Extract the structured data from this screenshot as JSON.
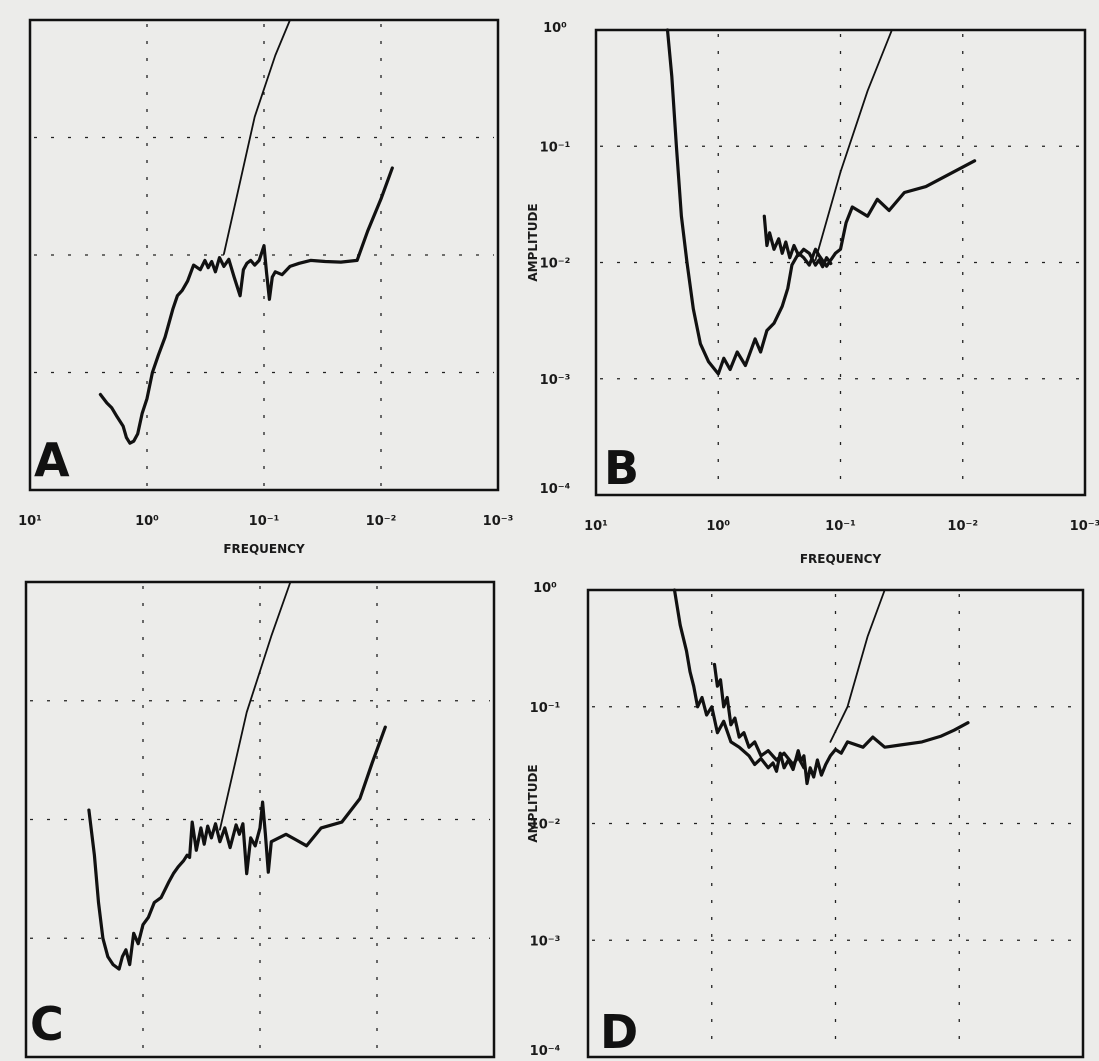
{
  "chart_data": [
    {
      "panel": "A",
      "type": "line",
      "xscale": "log",
      "yscale": "log",
      "xreversed": true,
      "xlim": [
        10,
        0.001
      ],
      "ylim": [
        0.0001,
        1
      ],
      "xticks": [
        "10¹",
        "10⁰",
        "10⁻¹",
        "10⁻²",
        "10⁻³"
      ],
      "yticks": [],
      "xlabel": "FREQUENCY",
      "ylabel": "",
      "grid": true,
      "series": [
        {
          "x": [
            0.22,
            0.12,
            0.08,
            0.06
          ],
          "y": [
            0.0102,
            0.15,
            0.5,
            1.0
          ]
        },
        {
          "x": [
            2.5,
            2.2,
            2.0,
            1.8,
            1.6,
            1.5,
            1.4,
            1.3,
            1.2,
            1.1,
            1.0,
            0.9,
            0.8,
            0.7,
            0.6,
            0.55,
            0.5,
            0.45,
            0.4,
            0.35,
            0.32,
            0.3,
            0.28,
            0.26,
            0.24,
            0.22,
            0.2,
            0.18,
            0.16,
            0.15,
            0.14,
            0.13,
            0.12,
            0.11,
            0.1,
            0.095,
            0.09,
            0.085,
            0.08,
            0.07,
            0.06,
            0.05,
            0.04,
            0.03,
            0.022,
            0.016,
            0.013,
            0.01,
            0.008
          ],
          "y": [
            0.00065,
            0.00055,
            0.0005,
            0.00042,
            0.00035,
            0.00028,
            0.00025,
            0.00026,
            0.0003,
            0.00045,
            0.0006,
            0.001,
            0.0014,
            0.002,
            0.0035,
            0.0045,
            0.005,
            0.006,
            0.0082,
            0.0075,
            0.009,
            0.0078,
            0.0088,
            0.0072,
            0.0095,
            0.008,
            0.0092,
            0.0065,
            0.0045,
            0.0075,
            0.0085,
            0.009,
            0.0082,
            0.009,
            0.012,
            0.007,
            0.0042,
            0.0065,
            0.0072,
            0.0068,
            0.008,
            0.0085,
            0.009,
            0.0088,
            0.0087,
            0.009,
            0.016,
            0.03,
            0.055
          ]
        }
      ]
    },
    {
      "panel": "B",
      "type": "line",
      "xscale": "log",
      "yscale": "log",
      "xreversed": true,
      "xlim": [
        10,
        0.001
      ],
      "ylim": [
        0.0001,
        1
      ],
      "xticks": [
        "10¹",
        "10⁰",
        "10⁻¹",
        "10⁻²",
        "10⁻³"
      ],
      "yticks": [
        "10⁰",
        "10⁻¹",
        "10⁻²",
        "10⁻³",
        "10⁻⁴"
      ],
      "xlabel": "FREQUENCY",
      "ylabel": "AMPLITUDE",
      "grid": true,
      "series": [
        {
          "x": [
            0.16,
            0.1,
            0.06,
            0.038
          ],
          "y": [
            0.0105,
            0.06,
            0.3,
            1.0
          ]
        },
        {
          "x": [
            2.6,
            2.4,
            2.2,
            2.0,
            1.8,
            1.6,
            1.4,
            1.2,
            1.0,
            0.9,
            0.8,
            0.7,
            0.6,
            0.5,
            0.45,
            0.4,
            0.35,
            0.3,
            0.27,
            0.25,
            0.22,
            0.2,
            0.18,
            0.16,
            0.15,
            0.13,
            0.12,
            0.11,
            0.1,
            0.09,
            0.08,
            0.06,
            0.05,
            0.04,
            0.03,
            0.02,
            0.008
          ],
          "y": [
            1.0,
            0.4,
            0.1,
            0.025,
            0.01,
            0.004,
            0.002,
            0.0014,
            0.0011,
            0.0015,
            0.0012,
            0.0017,
            0.0013,
            0.0022,
            0.0017,
            0.0026,
            0.003,
            0.0042,
            0.006,
            0.0095,
            0.012,
            0.011,
            0.0095,
            0.013,
            0.0115,
            0.0093,
            0.0105,
            0.012,
            0.013,
            0.022,
            0.03,
            0.025,
            0.035,
            0.028,
            0.04,
            0.045,
            0.075
          ]
        },
        {
          "x": [
            0.42,
            0.4,
            0.38,
            0.35,
            0.32,
            0.3,
            0.28,
            0.26,
            0.24,
            0.22,
            0.2,
            0.18,
            0.16,
            0.15,
            0.14,
            0.13,
            0.12
          ],
          "y": [
            0.025,
            0.014,
            0.018,
            0.013,
            0.016,
            0.012,
            0.015,
            0.011,
            0.014,
            0.0115,
            0.013,
            0.012,
            0.0095,
            0.0105,
            0.0092,
            0.011,
            0.0098
          ]
        }
      ]
    },
    {
      "panel": "C",
      "type": "line",
      "xscale": "log",
      "yscale": "log",
      "xreversed": true,
      "xlim": [
        10,
        0.001
      ],
      "ylim": [
        0.0001,
        1
      ],
      "xticks": [],
      "yticks": [],
      "xlabel": "",
      "ylabel": "",
      "grid": true,
      "series": [
        {
          "x": [
            0.22,
            0.13,
            0.08,
            0.055
          ],
          "y": [
            0.0082,
            0.08,
            0.35,
            1.0
          ]
        },
        {
          "x": [
            2.9,
            2.6,
            2.4,
            2.2,
            2.0,
            1.8,
            1.6,
            1.5,
            1.4,
            1.3,
            1.2,
            1.1,
            1.0,
            0.9,
            0.8,
            0.7,
            0.6,
            0.55,
            0.5,
            0.45,
            0.42,
            0.4,
            0.38,
            0.35,
            0.32,
            0.3,
            0.28,
            0.26,
            0.24,
            0.22,
            0.2,
            0.18,
            0.16,
            0.15,
            0.14,
            0.13,
            0.12,
            0.11,
            0.1,
            0.095,
            0.09,
            0.085,
            0.08,
            0.06,
            0.05,
            0.04,
            0.03,
            0.02,
            0.014,
            0.011,
            0.0085
          ],
          "y": [
            0.012,
            0.005,
            0.002,
            0.001,
            0.0007,
            0.0006,
            0.00055,
            0.0007,
            0.0008,
            0.0006,
            0.0011,
            0.0009,
            0.0013,
            0.0015,
            0.002,
            0.0022,
            0.003,
            0.0035,
            0.004,
            0.0045,
            0.005,
            0.0048,
            0.0095,
            0.0055,
            0.0085,
            0.0062,
            0.0088,
            0.007,
            0.0092,
            0.0065,
            0.0085,
            0.0058,
            0.009,
            0.0075,
            0.0092,
            0.0035,
            0.007,
            0.006,
            0.0085,
            0.014,
            0.0075,
            0.0036,
            0.0065,
            0.0075,
            0.0068,
            0.006,
            0.0085,
            0.0095,
            0.015,
            0.03,
            0.06
          ]
        }
      ]
    },
    {
      "panel": "D",
      "type": "line",
      "xscale": "log",
      "yscale": "log",
      "xreversed": true,
      "xlim": [
        10,
        0.001
      ],
      "ylim": [
        0.0001,
        1
      ],
      "xticks": [],
      "yticks": [
        "10⁰",
        "10⁻¹",
        "10⁻²",
        "10⁻³",
        "10⁻⁴"
      ],
      "xlabel": "",
      "ylabel": "AMPLITUDE",
      "grid": true,
      "series": [
        {
          "x": [
            0.11,
            0.08,
            0.055,
            0.04
          ],
          "y": [
            0.05,
            0.1,
            0.4,
            1.0
          ]
        },
        {
          "x": [
            2.0,
            1.8,
            1.6,
            1.5,
            1.4,
            1.3,
            1.2,
            1.1,
            1.0,
            0.9,
            0.8,
            0.7,
            0.6,
            0.5,
            0.45,
            0.4,
            0.35,
            0.32,
            0.3,
            0.28,
            0.26,
            0.24,
            0.22,
            0.2,
            0.19,
            0.18,
            0.17,
            0.16,
            0.15,
            0.14,
            0.13,
            0.12,
            0.11,
            0.1,
            0.09,
            0.08,
            0.06,
            0.05,
            0.04,
            0.03,
            0.02,
            0.014,
            0.011,
            0.0085
          ],
          "y": [
            1.0,
            0.5,
            0.3,
            0.2,
            0.15,
            0.1,
            0.12,
            0.085,
            0.1,
            0.06,
            0.075,
            0.05,
            0.045,
            0.038,
            0.032,
            0.036,
            0.03,
            0.033,
            0.028,
            0.04,
            0.03,
            0.035,
            0.029,
            0.042,
            0.034,
            0.038,
            0.022,
            0.03,
            0.025,
            0.035,
            0.026,
            0.032,
            0.038,
            0.043,
            0.04,
            0.05,
            0.045,
            0.055,
            0.045,
            0.047,
            0.05,
            0.056,
            0.063,
            0.073
          ]
        },
        {
          "x": [
            0.95,
            0.9,
            0.85,
            0.8,
            0.75,
            0.7,
            0.65,
            0.6,
            0.55,
            0.5,
            0.45,
            0.4,
            0.35,
            0.3,
            0.26,
            0.22,
            0.2,
            0.18
          ],
          "y": [
            0.23,
            0.15,
            0.17,
            0.1,
            0.12,
            0.07,
            0.08,
            0.055,
            0.06,
            0.045,
            0.05,
            0.038,
            0.042,
            0.035,
            0.04,
            0.032,
            0.037,
            0.03
          ]
        }
      ]
    }
  ],
  "panel_letters": {
    "a": "A",
    "b": "B",
    "c": "C",
    "d": "D"
  },
  "colors": {
    "background": "#ececea",
    "ink": "#111111"
  }
}
